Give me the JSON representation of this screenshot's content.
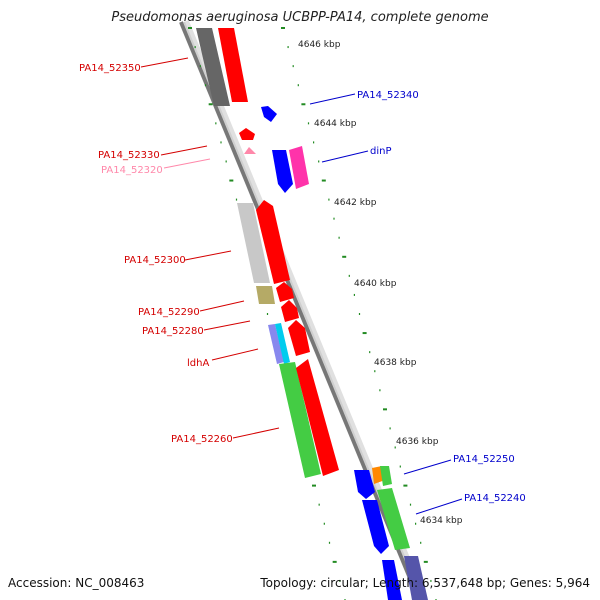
{
  "title": "Pseudomonas aeruginosa UCBPP-PA14, complete genome",
  "accession": "Accession: NC_008463",
  "summary": "Topology: circular; Length: 6,537,648 bp; Genes: 5,964",
  "kbp_labels": [
    "4646 kbp",
    "4644 kbp",
    "4642 kbp",
    "4640 kbp",
    "4638 kbp",
    "4636 kbp",
    "4634 kbp"
  ],
  "gene_labels": {
    "PA14_52350": "PA14_52350",
    "PA14_52340": "PA14_52340",
    "PA14_52330": "PA14_52330",
    "PA14_52320": "PA14_52320",
    "dinP": "dinP",
    "PA14_52300": "PA14_52300",
    "PA14_52290": "PA14_52290",
    "PA14_52280": "PA14_52280",
    "ldhA": "ldhA",
    "PA14_52260": "PA14_52260",
    "PA14_52250": "PA14_52250",
    "PA14_52240": "PA14_52240"
  },
  "colors": {
    "forward_label": "#d40000",
    "reverse_label": "#0000cc",
    "pseudo_label": "#ff88aa",
    "red": "#ff0000",
    "blue": "#0000ff",
    "green": "#44cc44",
    "gray": "#808080",
    "light_gray": "#c8c8c8",
    "magenta": "#ff33aa",
    "olive": "#b5aa66",
    "cyan": "#00ccee",
    "orange": "#ff8800",
    "navy": "#5555aa",
    "tick": "#228b22"
  }
}
